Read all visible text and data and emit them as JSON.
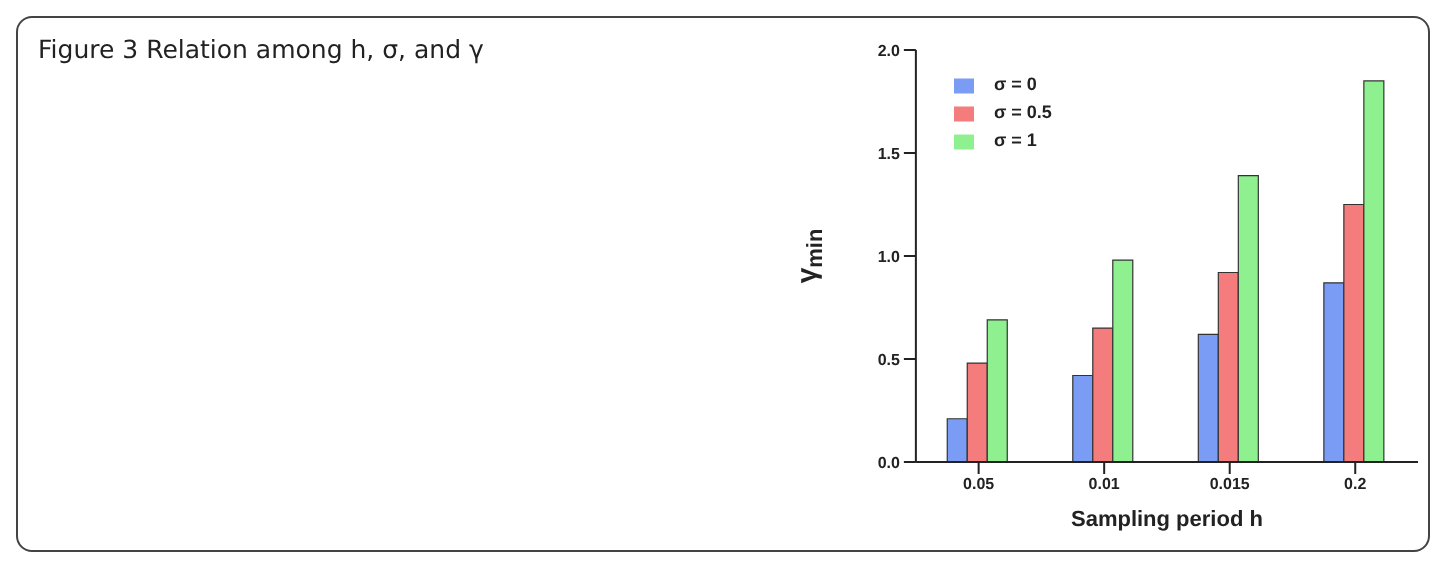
{
  "chart_data": {
    "type": "bar",
    "title": "Figure 3  Relation among h, σ, and γ",
    "xlabel": "Sampling period h",
    "ylabel": "γ$_{min}$",
    "categories": [
      "0.05",
      "0.01",
      "0.015",
      "0.2"
    ],
    "series": [
      {
        "name": "σ = 0",
        "color": "#7b9cf5",
        "values": [
          0.21,
          0.42,
          0.62,
          0.87
        ]
      },
      {
        "name": "σ = 0.5",
        "color": "#f47c7c",
        "values": [
          0.48,
          0.65,
          0.92,
          1.25
        ]
      },
      {
        "name": "σ = 1",
        "color": "#8ef08e",
        "values": [
          0.69,
          0.98,
          1.39,
          1.85
        ]
      }
    ],
    "ylim": [
      0,
      2
    ],
    "yticks": [
      {
        "value": 0,
        "label": "0.0"
      },
      0.5,
      {
        "value": 1,
        "label": "1.0"
      },
      1.5,
      {
        "value": 2,
        "label": "2.0"
      }
    ],
    "grid": false,
    "legend": "top left"
  }
}
